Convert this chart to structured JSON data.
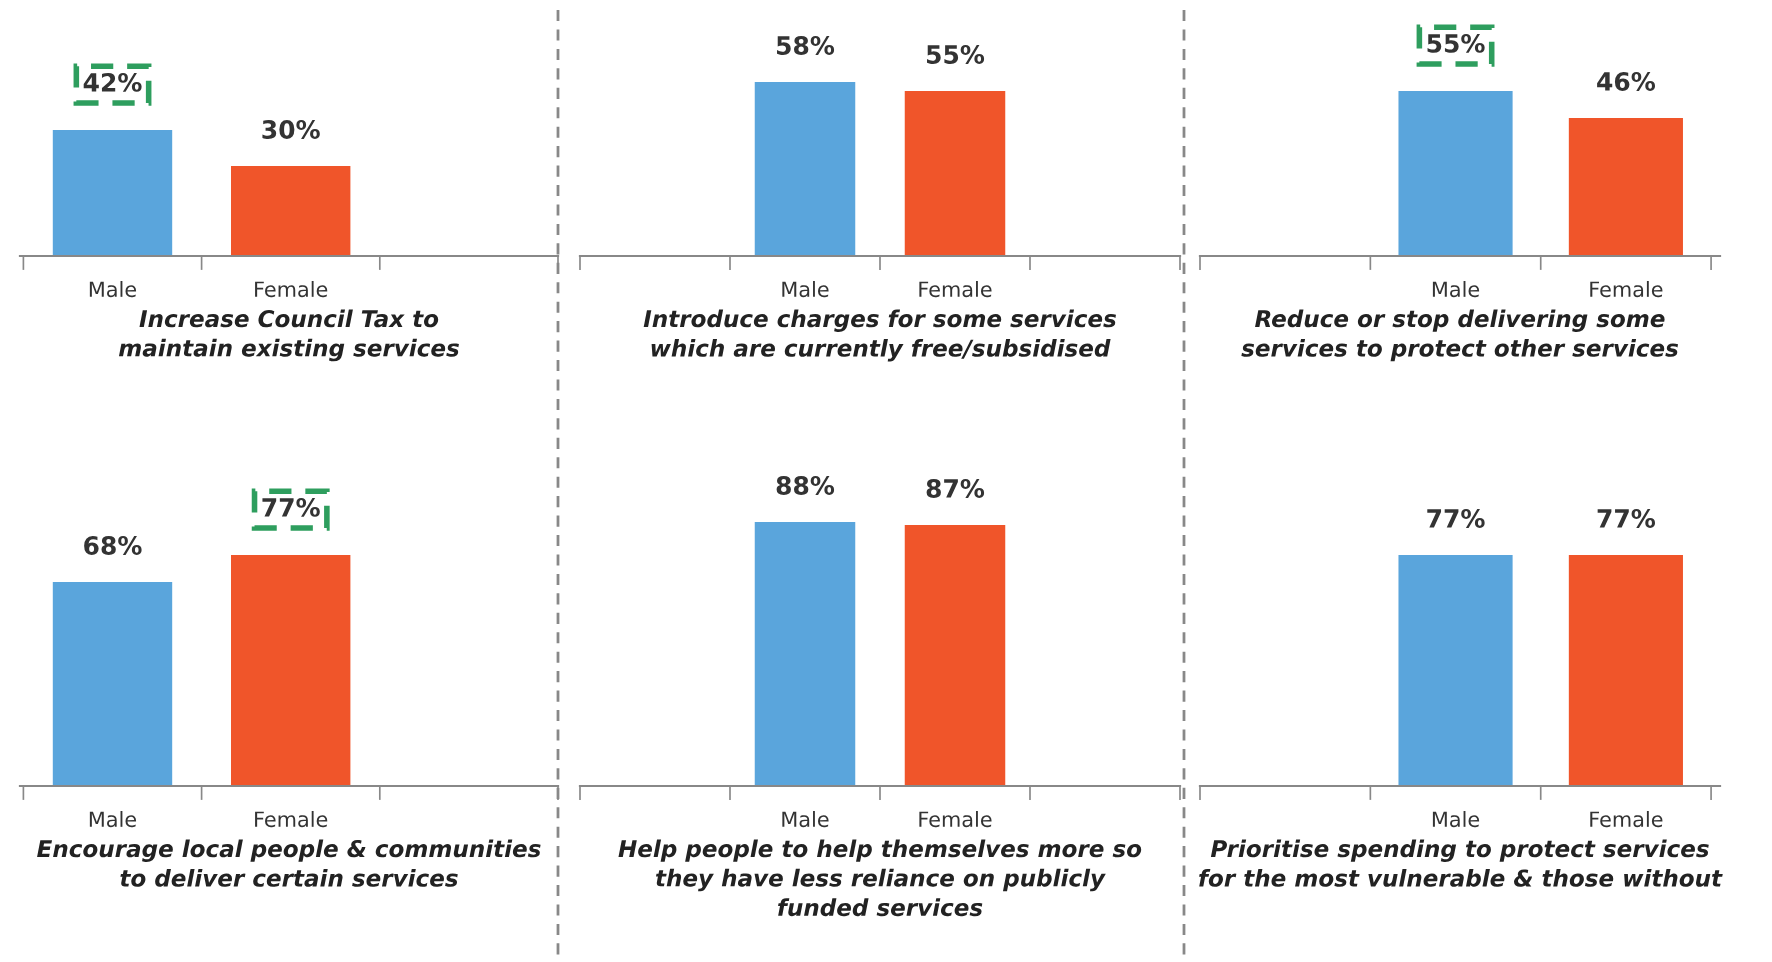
{
  "chart_data": [
    {
      "type": "bar",
      "categories": [
        "Male",
        "Female",
        null
      ],
      "values": [
        42,
        30,
        null
      ],
      "colors": [
        "#5aa5dc",
        "#f0552a",
        null
      ],
      "value_labels": [
        null,
        "30%",
        null
      ],
      "annotations": [
        {
          "text": "42%",
          "x": "Male",
          "y": 42
        }
      ],
      "xlabel": "Increase Council Tax to\nmaintain existing services"
    },
    {
      "type": "bar",
      "categories": [
        null,
        "Male",
        "Female",
        null
      ],
      "values": [
        null,
        58,
        55,
        null
      ],
      "colors": [
        null,
        "#5aa5dc",
        "#f0552a",
        null
      ],
      "value_labels": [
        null,
        "58%",
        "55%",
        null
      ],
      "xlabel": "Introduce charges for some services\nwhich are currently free/subsidised"
    },
    {
      "type": "bar",
      "categories": [
        null,
        "Male",
        "Female"
      ],
      "values": [
        null,
        55,
        46
      ],
      "colors": [
        null,
        "#5aa5dc",
        "#f0552a"
      ],
      "value_labels": [
        null,
        null,
        "46%"
      ],
      "annotations": [
        {
          "text": "55%",
          "x": "Male",
          "y": 55
        }
      ],
      "xlabel": "Reduce or stop delivering some\nservices to protect other services"
    },
    {
      "type": "bar",
      "categories": [
        "Male",
        "Female",
        null
      ],
      "values": [
        68,
        77,
        null
      ],
      "colors": [
        "#5aa5dc",
        "#f0552a",
        null
      ],
      "value_labels": [
        "68%",
        null,
        null
      ],
      "annotations": [
        {
          "text": "77%",
          "x": "Female",
          "y": 77
        }
      ],
      "xlabel": "Encourage local people & communities\nto deliver certain services"
    },
    {
      "type": "bar",
      "categories": [
        null,
        "Male",
        "Female",
        null
      ],
      "values": [
        null,
        88,
        87,
        null
      ],
      "colors": [
        null,
        "#5aa5dc",
        "#f0552a",
        null
      ],
      "value_labels": [
        null,
        "88%",
        "87%",
        null
      ],
      "xlabel": "Help people to help themselves more so\nthey have less reliance on publicly\nfunded services"
    },
    {
      "type": "bar",
      "categories": [
        null,
        "Male",
        "Female"
      ],
      "values": [
        null,
        77,
        77
      ],
      "colors": [
        null,
        "#5aa5dc",
        "#f0552a"
      ],
      "value_labels": [
        null,
        "77%",
        "77%"
      ],
      "xlabel": "Prioritise spending to protect services\nfor the most vulnerable & those without"
    }
  ]
}
